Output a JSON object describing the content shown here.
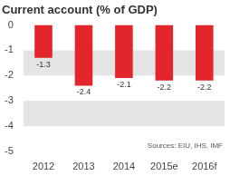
{
  "chart_data": {
    "type": "bar",
    "title": "Current account (% of GDP)",
    "categories": [
      "2012",
      "2013",
      "2014",
      "2015e",
      "2016f"
    ],
    "values": [
      -1.3,
      -2.4,
      -2.1,
      -2.2,
      -2.2
    ],
    "color": "#e2262b",
    "ylim": [
      -5,
      0
    ],
    "yticks": [
      -5,
      -4,
      -3,
      -2,
      -1,
      0
    ],
    "grid": false,
    "data_labels": true,
    "annotations": [
      "Sources: EIU, IHS, IMF"
    ]
  }
}
